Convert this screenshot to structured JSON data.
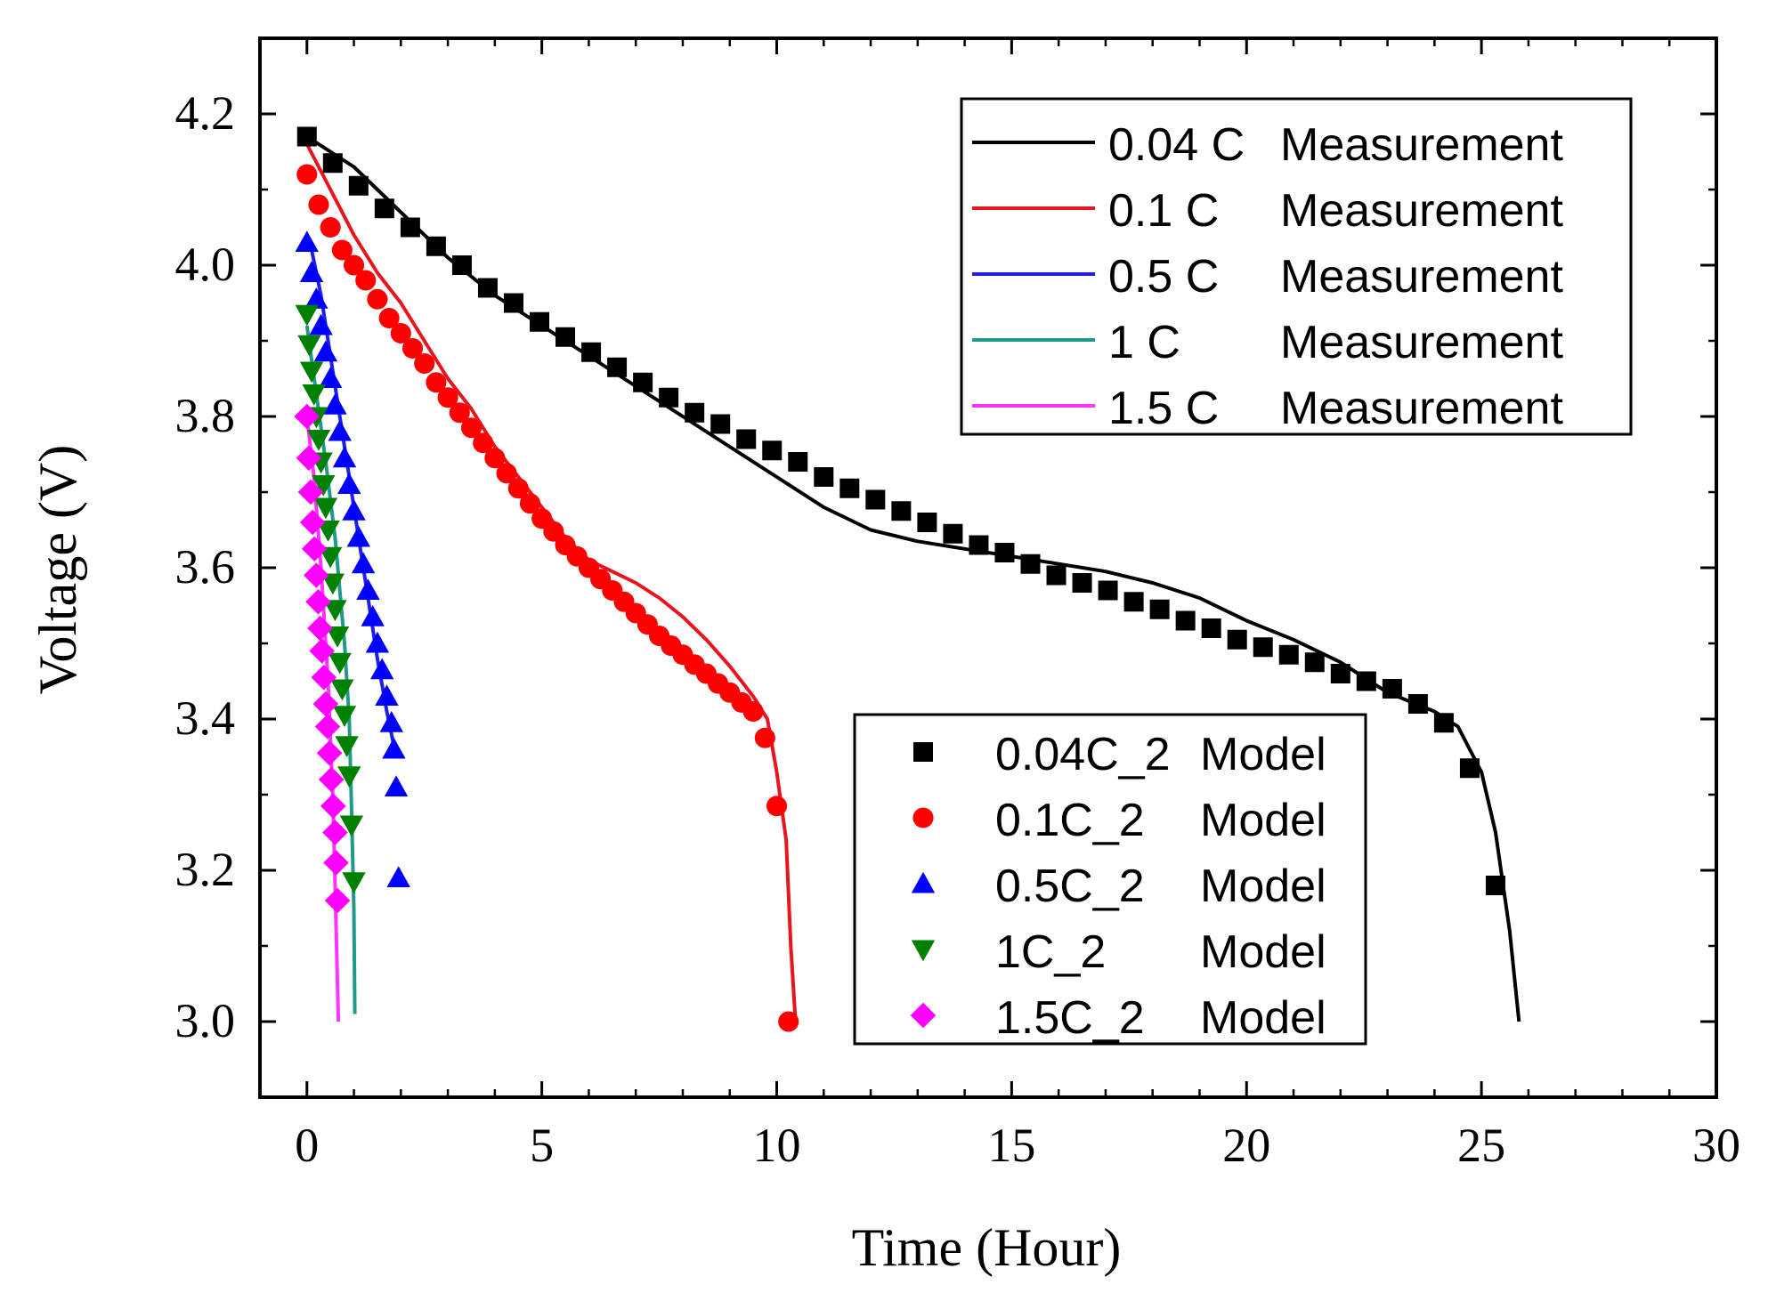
{
  "chart_data": {
    "type": "line",
    "title": "",
    "xlabel": "Time (Hour)",
    "ylabel": "Voltage (V)",
    "xlim": [
      -1,
      30
    ],
    "ylim": [
      2.9,
      4.3
    ],
    "xticks": [
      0,
      5,
      10,
      15,
      20,
      25,
      30
    ],
    "xtick_labels": [
      "0",
      "5",
      "10",
      "15",
      "20",
      "25",
      "30"
    ],
    "yticks": [
      3.0,
      3.2,
      3.4,
      3.6,
      3.8,
      4.0,
      4.2
    ],
    "ytick_labels": [
      "3.0",
      "3.2",
      "3.4",
      "3.6",
      "3.8",
      "4.0",
      "4.2"
    ],
    "legend_measurement": {
      "placement": "top-right",
      "entries": [
        {
          "c": "0.04 C",
          "label": "Measurement"
        },
        {
          "c": "0.1 C",
          "label": "Measurement"
        },
        {
          "c": "0.5 C",
          "label": "Measurement"
        },
        {
          "c": "1 C",
          "label": "Measurement"
        },
        {
          "c": "1.5 C",
          "label": "Measurement"
        }
      ]
    },
    "legend_model": {
      "placement": "lower-center",
      "entries": [
        {
          "c": "0.04C_2",
          "label": "Model"
        },
        {
          "c": "0.1C_2",
          "label": "Model"
        },
        {
          "c": "0.5C_2",
          "label": "Model"
        },
        {
          "c": "1C_2",
          "label": "Model"
        },
        {
          "c": "1.5C_2",
          "label": "Model"
        }
      ]
    },
    "series": [
      {
        "name": "0.04 C Measurement",
        "kind": "line",
        "color": "#000000",
        "points": [
          [
            0,
            4.17
          ],
          [
            1,
            4.13
          ],
          [
            2,
            4.07
          ],
          [
            3,
            4.01
          ],
          [
            4,
            3.96
          ],
          [
            5,
            3.92
          ],
          [
            6,
            3.88
          ],
          [
            7,
            3.84
          ],
          [
            8,
            3.8
          ],
          [
            9,
            3.76
          ],
          [
            10,
            3.72
          ],
          [
            11,
            3.68
          ],
          [
            12,
            3.65
          ],
          [
            13,
            3.635
          ],
          [
            14,
            3.625
          ],
          [
            15,
            3.615
          ],
          [
            16,
            3.605
          ],
          [
            17,
            3.595
          ],
          [
            18,
            3.58
          ],
          [
            19,
            3.56
          ],
          [
            20,
            3.53
          ],
          [
            21,
            3.505
          ],
          [
            22,
            3.475
          ],
          [
            23,
            3.435
          ],
          [
            24,
            3.41
          ],
          [
            24.5,
            3.39
          ],
          [
            25,
            3.33
          ],
          [
            25.3,
            3.25
          ],
          [
            25.6,
            3.12
          ],
          [
            25.8,
            3.0
          ]
        ]
      },
      {
        "name": "0.1 C Measurement",
        "kind": "line",
        "color": "#e8141e",
        "points": [
          [
            0,
            4.16
          ],
          [
            0.5,
            4.1
          ],
          [
            1,
            4.04
          ],
          [
            1.5,
            3.99
          ],
          [
            2,
            3.95
          ],
          [
            2.5,
            3.9
          ],
          [
            3,
            3.85
          ],
          [
            3.5,
            3.81
          ],
          [
            4,
            3.76
          ],
          [
            4.5,
            3.72
          ],
          [
            5,
            3.68
          ],
          [
            5.5,
            3.64
          ],
          [
            6,
            3.61
          ],
          [
            6.5,
            3.595
          ],
          [
            7,
            3.58
          ],
          [
            7.5,
            3.56
          ],
          [
            8,
            3.535
          ],
          [
            8.5,
            3.505
          ],
          [
            9,
            3.47
          ],
          [
            9.5,
            3.43
          ],
          [
            9.8,
            3.4
          ],
          [
            10.0,
            3.33
          ],
          [
            10.2,
            3.24
          ],
          [
            10.3,
            3.1
          ],
          [
            10.4,
            3.0
          ]
        ]
      },
      {
        "name": "0.5 C Measurement",
        "kind": "line",
        "color": "#1f1fe6",
        "points": [
          [
            0.1,
            4.02
          ],
          [
            0.3,
            3.96
          ],
          [
            0.5,
            3.88
          ],
          [
            0.7,
            3.8
          ],
          [
            0.9,
            3.72
          ],
          [
            1.1,
            3.64
          ],
          [
            1.3,
            3.56
          ],
          [
            1.5,
            3.48
          ],
          [
            1.7,
            3.41
          ],
          [
            1.9,
            3.35
          ]
        ]
      },
      {
        "name": "1 C Measurement",
        "kind": "line",
        "color": "#1f9a8a",
        "points": [
          [
            0,
            3.92
          ],
          [
            0.2,
            3.83
          ],
          [
            0.4,
            3.74
          ],
          [
            0.6,
            3.64
          ],
          [
            0.8,
            3.5
          ],
          [
            0.9,
            3.4
          ],
          [
            0.95,
            3.28
          ],
          [
            1.0,
            3.15
          ],
          [
            1.02,
            3.01
          ]
        ]
      },
      {
        "name": "1.5 C Measurement",
        "kind": "line",
        "color": "#ff33ff",
        "points": [
          [
            0,
            3.8
          ],
          [
            0.15,
            3.72
          ],
          [
            0.3,
            3.6
          ],
          [
            0.45,
            3.45
          ],
          [
            0.55,
            3.3
          ],
          [
            0.6,
            3.18
          ],
          [
            0.65,
            3.05
          ],
          [
            0.67,
            3.0
          ]
        ]
      },
      {
        "name": "0.04C_2 Model",
        "kind": "marker",
        "marker": "square",
        "color": "#000000",
        "points": [
          [
            0,
            4.17
          ],
          [
            0.55,
            4.135
          ],
          [
            1.1,
            4.105
          ],
          [
            1.65,
            4.075
          ],
          [
            2.2,
            4.05
          ],
          [
            2.75,
            4.025
          ],
          [
            3.3,
            4.0
          ],
          [
            3.85,
            3.97
          ],
          [
            4.4,
            3.95
          ],
          [
            4.95,
            3.925
          ],
          [
            5.5,
            3.905
          ],
          [
            6.05,
            3.885
          ],
          [
            6.6,
            3.865
          ],
          [
            7.15,
            3.845
          ],
          [
            7.7,
            3.825
          ],
          [
            8.25,
            3.805
          ],
          [
            8.8,
            3.79
          ],
          [
            9.35,
            3.77
          ],
          [
            9.9,
            3.755
          ],
          [
            10.45,
            3.74
          ],
          [
            11.0,
            3.72
          ],
          [
            11.55,
            3.705
          ],
          [
            12.1,
            3.69
          ],
          [
            12.65,
            3.675
          ],
          [
            13.2,
            3.66
          ],
          [
            13.75,
            3.645
          ],
          [
            14.3,
            3.63
          ],
          [
            14.85,
            3.62
          ],
          [
            15.4,
            3.605
          ],
          [
            15.95,
            3.59
          ],
          [
            16.5,
            3.58
          ],
          [
            17.05,
            3.57
          ],
          [
            17.6,
            3.555
          ],
          [
            18.15,
            3.545
          ],
          [
            18.7,
            3.53
          ],
          [
            19.25,
            3.52
          ],
          [
            19.8,
            3.505
          ],
          [
            20.35,
            3.495
          ],
          [
            20.9,
            3.485
          ],
          [
            21.45,
            3.475
          ],
          [
            22.0,
            3.46
          ],
          [
            22.55,
            3.45
          ],
          [
            23.1,
            3.44
          ],
          [
            23.65,
            3.42
          ],
          [
            24.2,
            3.395
          ],
          [
            24.75,
            3.335
          ],
          [
            25.3,
            3.18
          ]
        ]
      },
      {
        "name": "0.1C_2 Model",
        "kind": "marker",
        "marker": "circle",
        "color": "#ff0000",
        "points": [
          [
            0,
            4.12
          ],
          [
            0.25,
            4.08
          ],
          [
            0.5,
            4.05
          ],
          [
            0.75,
            4.02
          ],
          [
            1.0,
            4.0
          ],
          [
            1.25,
            3.98
          ],
          [
            1.5,
            3.955
          ],
          [
            1.75,
            3.93
          ],
          [
            2.0,
            3.91
          ],
          [
            2.25,
            3.89
          ],
          [
            2.5,
            3.87
          ],
          [
            2.75,
            3.845
          ],
          [
            3.0,
            3.825
          ],
          [
            3.25,
            3.805
          ],
          [
            3.5,
            3.785
          ],
          [
            3.75,
            3.765
          ],
          [
            4.0,
            3.745
          ],
          [
            4.25,
            3.725
          ],
          [
            4.5,
            3.705
          ],
          [
            4.75,
            3.685
          ],
          [
            5.0,
            3.665
          ],
          [
            5.25,
            3.648
          ],
          [
            5.5,
            3.63
          ],
          [
            5.75,
            3.615
          ],
          [
            6.0,
            3.6
          ],
          [
            6.25,
            3.585
          ],
          [
            6.5,
            3.57
          ],
          [
            6.75,
            3.555
          ],
          [
            7.0,
            3.54
          ],
          [
            7.25,
            3.525
          ],
          [
            7.5,
            3.51
          ],
          [
            7.75,
            3.497
          ],
          [
            8.0,
            3.485
          ],
          [
            8.25,
            3.472
          ],
          [
            8.5,
            3.46
          ],
          [
            8.75,
            3.447
          ],
          [
            9.0,
            3.435
          ],
          [
            9.25,
            3.422
          ],
          [
            9.5,
            3.41
          ],
          [
            9.75,
            3.375
          ],
          [
            10.0,
            3.285
          ],
          [
            10.25,
            3.0
          ]
        ]
      },
      {
        "name": "0.5C_2 Model",
        "kind": "marker",
        "marker": "triangle-up",
        "color": "#0000ff",
        "points": [
          [
            0,
            4.03
          ],
          [
            0.1,
            3.99
          ],
          [
            0.2,
            3.955
          ],
          [
            0.3,
            3.92
          ],
          [
            0.4,
            3.885
          ],
          [
            0.5,
            3.85
          ],
          [
            0.6,
            3.815
          ],
          [
            0.7,
            3.78
          ],
          [
            0.8,
            3.745
          ],
          [
            0.9,
            3.71
          ],
          [
            1.0,
            3.675
          ],
          [
            1.1,
            3.64
          ],
          [
            1.2,
            3.605
          ],
          [
            1.3,
            3.57
          ],
          [
            1.4,
            3.535
          ],
          [
            1.5,
            3.5
          ],
          [
            1.6,
            3.465
          ],
          [
            1.7,
            3.43
          ],
          [
            1.8,
            3.395
          ],
          [
            1.85,
            3.36
          ],
          [
            1.9,
            3.31
          ],
          [
            1.95,
            3.19
          ]
        ]
      },
      {
        "name": "1C_2 Model",
        "kind": "marker",
        "marker": "triangle-down",
        "color": "#008000",
        "points": [
          [
            0,
            3.935
          ],
          [
            0.05,
            3.895
          ],
          [
            0.1,
            3.86
          ],
          [
            0.15,
            3.83
          ],
          [
            0.2,
            3.8
          ],
          [
            0.25,
            3.77
          ],
          [
            0.3,
            3.74
          ],
          [
            0.35,
            3.71
          ],
          [
            0.4,
            3.68
          ],
          [
            0.45,
            3.65
          ],
          [
            0.5,
            3.615
          ],
          [
            0.55,
            3.58
          ],
          [
            0.6,
            3.545
          ],
          [
            0.65,
            3.51
          ],
          [
            0.7,
            3.475
          ],
          [
            0.75,
            3.44
          ],
          [
            0.8,
            3.405
          ],
          [
            0.85,
            3.365
          ],
          [
            0.9,
            3.325
          ],
          [
            0.95,
            3.26
          ],
          [
            1.0,
            3.185
          ]
        ]
      },
      {
        "name": "1.5C_2 Model",
        "kind": "marker",
        "marker": "diamond",
        "color": "#ff00ff",
        "points": [
          [
            0,
            3.8
          ],
          [
            0.04,
            3.745
          ],
          [
            0.08,
            3.7
          ],
          [
            0.12,
            3.66
          ],
          [
            0.16,
            3.625
          ],
          [
            0.2,
            3.59
          ],
          [
            0.24,
            3.555
          ],
          [
            0.28,
            3.52
          ],
          [
            0.32,
            3.49
          ],
          [
            0.36,
            3.455
          ],
          [
            0.4,
            3.42
          ],
          [
            0.44,
            3.39
          ],
          [
            0.48,
            3.355
          ],
          [
            0.52,
            3.32
          ],
          [
            0.56,
            3.285
          ],
          [
            0.6,
            3.25
          ],
          [
            0.62,
            3.21
          ],
          [
            0.65,
            3.16
          ]
        ]
      }
    ]
  }
}
